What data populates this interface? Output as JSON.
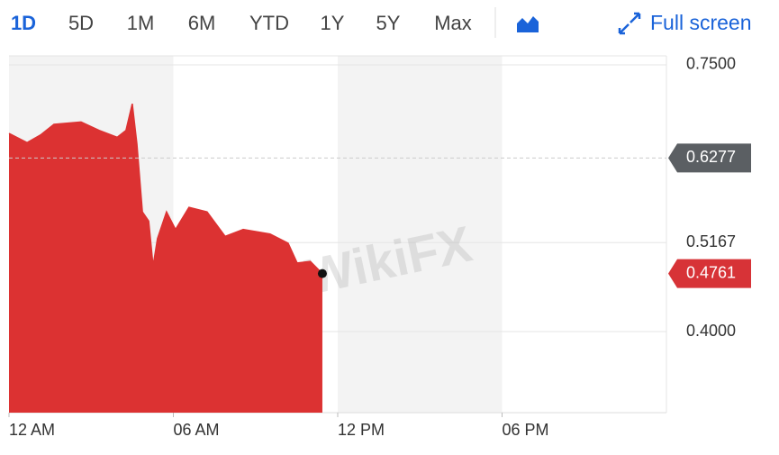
{
  "chart_data": {
    "type": "area",
    "ranges": [
      "1D",
      "5D",
      "1M",
      "6M",
      "YTD",
      "1Y",
      "5Y",
      "Max"
    ],
    "fullscreen": "Full screen",
    "watermark": "WikiFX",
    "color": "#dc3232",
    "x": [
      0,
      0.66,
      1.15,
      1.64,
      2.63,
      3.29,
      3.95,
      4.27,
      4.5,
      4.67,
      4.87,
      5.1,
      5.26,
      5.42,
      5.75,
      6.08,
      6.57,
      7.23,
      7.89,
      8.55,
      9.53,
      10.19,
      10.52,
      11.0,
      11.44
    ],
    "values": [
      0.66,
      0.648,
      0.658,
      0.672,
      0.675,
      0.664,
      0.655,
      0.664,
      0.699,
      0.646,
      0.557,
      0.545,
      0.486,
      0.522,
      0.557,
      0.534,
      0.563,
      0.557,
      0.525,
      0.534,
      0.528,
      0.516,
      0.49,
      0.492,
      0.4761
    ],
    "xlim": [
      0,
      24
    ],
    "xticks": [
      {
        "value": 0,
        "label": "12 AM"
      },
      {
        "value": 6,
        "label": "06 AM"
      },
      {
        "value": 12,
        "label": "12 PM"
      },
      {
        "value": 18,
        "label": "06 PM"
      }
    ],
    "ylim": [
      0.2936,
      0.7618
    ],
    "yticks": [
      {
        "value": 0.75,
        "label": "0.7500"
      },
      0.5167,
      {
        "value": 0.4,
        "label": "0.4000"
      }
    ],
    "previous_close": 0.6277,
    "last_price": 0.4761,
    "grid": true
  }
}
